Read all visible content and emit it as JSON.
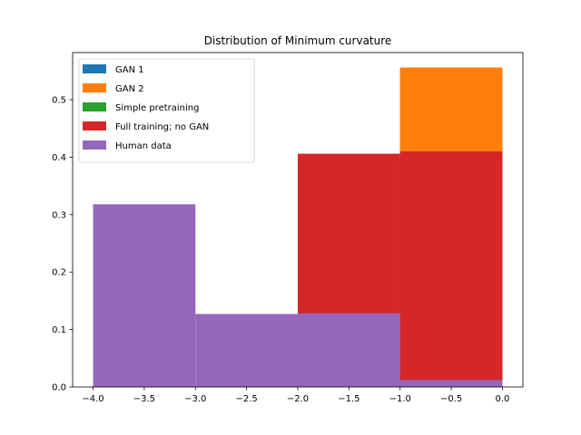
{
  "chart_data": {
    "type": "histogram",
    "title": "Distribution of Minimum curvature",
    "xlabel": "",
    "ylabel": "",
    "xlim": [
      -4.2,
      0.2
    ],
    "ylim": [
      0,
      0.582
    ],
    "x_ticks": [
      -4.0,
      -3.5,
      -3.0,
      -2.5,
      -2.0,
      -1.5,
      -1.0,
      -0.5,
      0.0
    ],
    "x_tick_labels": [
      "−4.0",
      "−3.5",
      "−3.0",
      "−2.5",
      "−2.0",
      "−1.5",
      "−1.0",
      "−0.5",
      "0.0"
    ],
    "y_ticks": [
      0.0,
      0.1,
      0.2,
      0.3,
      0.4,
      0.5
    ],
    "y_tick_labels": [
      "0.0",
      "0.1",
      "0.2",
      "0.3",
      "0.4",
      "0.5"
    ],
    "grid": false,
    "legend_position": "upper-left",
    "series": [
      {
        "name": "GAN 1",
        "color": "#1f77b4",
        "bins": [
          {
            "x0": -1.0,
            "x1": 0.0,
            "value": 0.556
          }
        ]
      },
      {
        "name": "GAN 2",
        "color": "#ff7f0e",
        "bins": [
          {
            "x0": -1.0,
            "x1": 0.0,
            "value": 0.556
          }
        ]
      },
      {
        "name": "Simple pretraining",
        "color": "#2ca02c",
        "bins": [
          {
            "x0": -1.0,
            "x1": 0.0,
            "value": 0.41
          }
        ]
      },
      {
        "name": "Full training; no GAN",
        "color": "#d62728",
        "bins": [
          {
            "x0": -2.0,
            "x1": -1.0,
            "value": 0.406
          },
          {
            "x0": -1.0,
            "x1": 0.0,
            "value": 0.41
          }
        ]
      },
      {
        "name": "Human data",
        "color": "#9467bd",
        "bins": [
          {
            "x0": -4.0,
            "x1": -3.0,
            "value": 0.318
          },
          {
            "x0": -3.0,
            "x1": -2.0,
            "value": 0.127
          },
          {
            "x0": -2.0,
            "x1": -1.0,
            "value": 0.128
          },
          {
            "x0": -1.0,
            "x1": 0.0,
            "value": 0.012
          }
        ]
      }
    ]
  }
}
